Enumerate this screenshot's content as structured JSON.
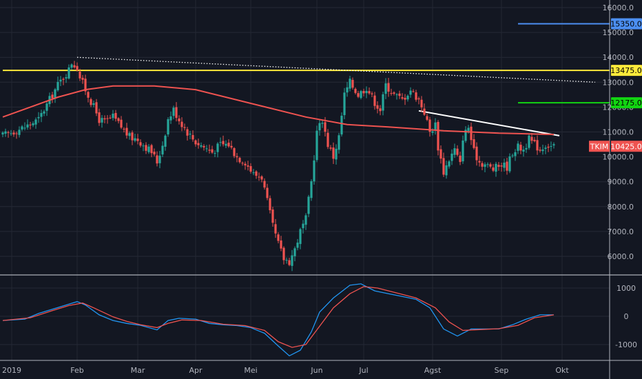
{
  "chart_data": [
    {
      "type": "candlestick",
      "symbol": "TKIM",
      "last_price": 10425,
      "last_price_label": "10425.0",
      "y_range": [
        5500,
        16500
      ],
      "y_ticks": [
        {
          "v": 16000,
          "label": "16000.0"
        },
        {
          "v": 15000,
          "label": "15000.0"
        },
        {
          "v": 14000,
          "label": "14000.0"
        },
        {
          "v": 13000,
          "label": "13000.0"
        },
        {
          "v": 12000,
          "label": "12000.0"
        },
        {
          "v": 11000,
          "label": "11000.0"
        },
        {
          "v": 10000,
          "label": "10000.0"
        },
        {
          "v": 9000,
          "label": "9000.0"
        },
        {
          "v": 8000,
          "label": "8000.0"
        },
        {
          "v": 7000,
          "label": "7000.0"
        },
        {
          "v": 6000,
          "label": "6000.0"
        }
      ],
      "x_ticks": [
        "2019",
        "Feb",
        "Mar",
        "Apr",
        "Mei",
        "Jun",
        "Jul",
        "Agst",
        "Sep",
        "Okt"
      ],
      "price_path": [
        {
          "x": 0,
          "y": 10850
        },
        {
          "x": 8,
          "y": 11200
        },
        {
          "x": 13,
          "y": 11500
        },
        {
          "x": 17,
          "y": 12300
        },
        {
          "x": 20,
          "y": 12900
        },
        {
          "x": 24,
          "y": 13500
        },
        {
          "x": 25,
          "y": 13800
        },
        {
          "x": 27,
          "y": 13600
        },
        {
          "x": 28,
          "y": 13200
        },
        {
          "x": 30,
          "y": 12700
        },
        {
          "x": 33,
          "y": 12000
        },
        {
          "x": 35,
          "y": 11500
        },
        {
          "x": 37,
          "y": 11400
        },
        {
          "x": 40,
          "y": 11600
        },
        {
          "x": 43,
          "y": 11200
        },
        {
          "x": 46,
          "y": 10800
        },
        {
          "x": 49,
          "y": 10700
        },
        {
          "x": 52,
          "y": 10400
        },
        {
          "x": 54,
          "y": 10200
        },
        {
          "x": 56,
          "y": 9800
        },
        {
          "x": 58,
          "y": 10500
        },
        {
          "x": 60,
          "y": 11500
        },
        {
          "x": 62,
          "y": 11900
        },
        {
          "x": 64,
          "y": 11500
        },
        {
          "x": 67,
          "y": 11000
        },
        {
          "x": 70,
          "y": 10600
        },
        {
          "x": 73,
          "y": 10400
        },
        {
          "x": 76,
          "y": 10200
        },
        {
          "x": 79,
          "y": 10500
        },
        {
          "x": 82,
          "y": 10500
        },
        {
          "x": 85,
          "y": 10000
        },
        {
          "x": 88,
          "y": 9800
        },
        {
          "x": 91,
          "y": 9300
        },
        {
          "x": 94,
          "y": 9200
        },
        {
          "x": 96,
          "y": 8200
        },
        {
          "x": 98,
          "y": 7200
        },
        {
          "x": 100,
          "y": 6500
        },
        {
          "x": 102,
          "y": 5900
        },
        {
          "x": 104,
          "y": 5800
        },
        {
          "x": 106,
          "y": 6300
        },
        {
          "x": 108,
          "y": 7000
        },
        {
          "x": 110,
          "y": 7500
        },
        {
          "x": 112,
          "y": 9000
        },
        {
          "x": 114,
          "y": 11000
        },
        {
          "x": 116,
          "y": 11500
        },
        {
          "x": 118,
          "y": 10500
        },
        {
          "x": 120,
          "y": 10000
        },
        {
          "x": 122,
          "y": 10800
        },
        {
          "x": 124,
          "y": 12500
        },
        {
          "x": 126,
          "y": 13000
        },
        {
          "x": 129,
          "y": 12500
        },
        {
          "x": 132,
          "y": 12800
        },
        {
          "x": 135,
          "y": 12200
        },
        {
          "x": 137,
          "y": 11900
        },
        {
          "x": 139,
          "y": 12900
        },
        {
          "x": 142,
          "y": 12500
        },
        {
          "x": 145,
          "y": 12300
        },
        {
          "x": 148,
          "y": 12700
        },
        {
          "x": 151,
          "y": 12300
        },
        {
          "x": 153,
          "y": 11800
        },
        {
          "x": 155,
          "y": 11000
        },
        {
          "x": 157,
          "y": 11300
        },
        {
          "x": 158,
          "y": 10400
        },
        {
          "x": 160,
          "y": 9400
        },
        {
          "x": 162,
          "y": 9900
        },
        {
          "x": 164,
          "y": 10300
        },
        {
          "x": 166,
          "y": 9700
        },
        {
          "x": 167,
          "y": 10800
        },
        {
          "x": 169,
          "y": 11200
        },
        {
          "x": 171,
          "y": 10200
        },
        {
          "x": 173,
          "y": 9800
        },
        {
          "x": 175,
          "y": 9700
        },
        {
          "x": 178,
          "y": 9500
        },
        {
          "x": 181,
          "y": 9700
        },
        {
          "x": 183,
          "y": 9600
        },
        {
          "x": 185,
          "y": 10200
        },
        {
          "x": 187,
          "y": 10400
        },
        {
          "x": 189,
          "y": 10300
        },
        {
          "x": 191,
          "y": 10700
        },
        {
          "x": 193,
          "y": 10500
        },
        {
          "x": 195,
          "y": 10300
        },
        {
          "x": 197,
          "y": 10500
        },
        {
          "x": 199,
          "y": 10425
        }
      ],
      "ma_path": [
        {
          "x": 0,
          "y": 11600
        },
        {
          "x": 10,
          "y": 12000
        },
        {
          "x": 20,
          "y": 12400
        },
        {
          "x": 30,
          "y": 12700
        },
        {
          "x": 40,
          "y": 12850
        },
        {
          "x": 55,
          "y": 12850
        },
        {
          "x": 70,
          "y": 12700
        },
        {
          "x": 90,
          "y": 12150
        },
        {
          "x": 110,
          "y": 11600
        },
        {
          "x": 125,
          "y": 11300
        },
        {
          "x": 140,
          "y": 11200
        },
        {
          "x": 160,
          "y": 11050
        },
        {
          "x": 180,
          "y": 10950
        },
        {
          "x": 200,
          "y": 10900
        }
      ],
      "levels": [
        {
          "name": "level-15350",
          "value": 15350,
          "label": "15350.0",
          "color": "#4c8ff2",
          "x_start": 187,
          "x_end": 209
        },
        {
          "name": "level-13475",
          "value": 13475,
          "label": "13475.0",
          "color": "#ffeb3b",
          "x_start": 0,
          "x_end": 209
        },
        {
          "name": "level-12175",
          "value": 12175,
          "label": "12175.0",
          "color": "#12d512",
          "x_start": 187,
          "x_end": 209
        }
      ],
      "trendlines": [
        {
          "name": "dotted-trendline",
          "x1": 27,
          "y1": 14000,
          "x2": 215,
          "y2": 13000,
          "color": "#ffffff",
          "style": "dotted"
        },
        {
          "name": "white-trendline",
          "x1": 151,
          "y1": 11850,
          "x2": 202,
          "y2": 10850,
          "color": "#ffffff",
          "style": "solid"
        }
      ],
      "colors": {
        "up": "#26a69a",
        "down": "#ef5350",
        "ma": "#ef5350",
        "label_bg": "#ef5350"
      }
    },
    {
      "type": "line",
      "name": "macd",
      "y_range": [
        -1450,
        1450
      ],
      "y_ticks": [
        {
          "v": 1000,
          "label": "1000"
        },
        {
          "v": 0,
          "label": "0"
        },
        {
          "v": -1000,
          "label": "-1000"
        }
      ],
      "series": [
        {
          "key": "macd",
          "color": "#2196f3",
          "points": [
            {
              "x": 0,
              "y": -150
            },
            {
              "x": 8,
              "y": -100
            },
            {
              "x": 13,
              "y": 100
            },
            {
              "x": 18,
              "y": 250
            },
            {
              "x": 23,
              "y": 400
            },
            {
              "x": 27,
              "y": 520
            },
            {
              "x": 30,
              "y": 400
            },
            {
              "x": 35,
              "y": 50
            },
            {
              "x": 40,
              "y": -150
            },
            {
              "x": 45,
              "y": -250
            },
            {
              "x": 50,
              "y": -320
            },
            {
              "x": 56,
              "y": -480
            },
            {
              "x": 60,
              "y": -150
            },
            {
              "x": 64,
              "y": -70
            },
            {
              "x": 70,
              "y": -100
            },
            {
              "x": 75,
              "y": -250
            },
            {
              "x": 80,
              "y": -300
            },
            {
              "x": 85,
              "y": -330
            },
            {
              "x": 90,
              "y": -400
            },
            {
              "x": 95,
              "y": -600
            },
            {
              "x": 100,
              "y": -1050
            },
            {
              "x": 104,
              "y": -1400
            },
            {
              "x": 108,
              "y": -1200
            },
            {
              "x": 112,
              "y": -550
            },
            {
              "x": 115,
              "y": 150
            },
            {
              "x": 120,
              "y": 650
            },
            {
              "x": 126,
              "y": 1100
            },
            {
              "x": 130,
              "y": 1150
            },
            {
              "x": 135,
              "y": 900
            },
            {
              "x": 140,
              "y": 800
            },
            {
              "x": 145,
              "y": 700
            },
            {
              "x": 150,
              "y": 600
            },
            {
              "x": 155,
              "y": 300
            },
            {
              "x": 160,
              "y": -450
            },
            {
              "x": 165,
              "y": -700
            },
            {
              "x": 170,
              "y": -450
            },
            {
              "x": 175,
              "y": -450
            },
            {
              "x": 180,
              "y": -450
            },
            {
              "x": 185,
              "y": -300
            },
            {
              "x": 190,
              "y": -100
            },
            {
              "x": 195,
              "y": 50
            },
            {
              "x": 200,
              "y": 50
            }
          ]
        },
        {
          "key": "signal",
          "color": "#ef5350",
          "points": [
            {
              "x": 0,
              "y": -150
            },
            {
              "x": 10,
              "y": -50
            },
            {
              "x": 18,
              "y": 200
            },
            {
              "x": 24,
              "y": 380
            },
            {
              "x": 29,
              "y": 470
            },
            {
              "x": 33,
              "y": 300
            },
            {
              "x": 40,
              "y": -20
            },
            {
              "x": 45,
              "y": -180
            },
            {
              "x": 50,
              "y": -300
            },
            {
              "x": 56,
              "y": -400
            },
            {
              "x": 60,
              "y": -250
            },
            {
              "x": 65,
              "y": -130
            },
            {
              "x": 72,
              "y": -150
            },
            {
              "x": 80,
              "y": -280
            },
            {
              "x": 88,
              "y": -330
            },
            {
              "x": 95,
              "y": -500
            },
            {
              "x": 100,
              "y": -900
            },
            {
              "x": 105,
              "y": -1100
            },
            {
              "x": 110,
              "y": -1000
            },
            {
              "x": 115,
              "y": -350
            },
            {
              "x": 120,
              "y": 300
            },
            {
              "x": 126,
              "y": 800
            },
            {
              "x": 131,
              "y": 1050
            },
            {
              "x": 136,
              "y": 1000
            },
            {
              "x": 142,
              "y": 850
            },
            {
              "x": 150,
              "y": 650
            },
            {
              "x": 157,
              "y": 300
            },
            {
              "x": 162,
              "y": -200
            },
            {
              "x": 167,
              "y": -500
            },
            {
              "x": 173,
              "y": -470
            },
            {
              "x": 180,
              "y": -440
            },
            {
              "x": 187,
              "y": -320
            },
            {
              "x": 193,
              "y": -50
            },
            {
              "x": 200,
              "y": 50
            }
          ]
        }
      ]
    }
  ],
  "time_labels": [
    {
      "label": "2019",
      "x": 0
    },
    {
      "label": "Feb",
      "x": 27
    },
    {
      "label": "Mar",
      "x": 49
    },
    {
      "label": "Apr",
      "x": 70
    },
    {
      "label": "Mei",
      "x": 90
    },
    {
      "label": "Jun",
      "x": 114
    },
    {
      "label": "Jul",
      "x": 131
    },
    {
      "label": "Agst",
      "x": 156
    },
    {
      "label": "Sep",
      "x": 181
    },
    {
      "label": "Okt",
      "x": 203
    }
  ]
}
